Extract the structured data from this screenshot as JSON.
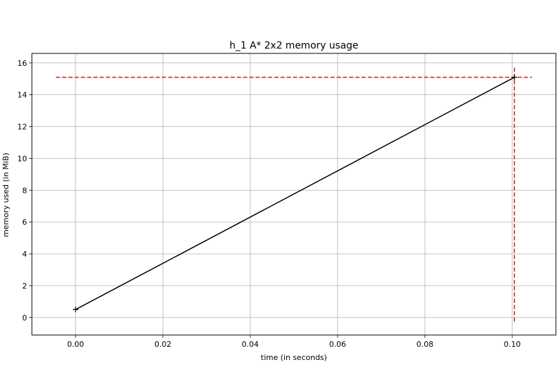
{
  "chart_data": {
    "type": "line",
    "title": "h_1 A* 2x2 memory usage",
    "xlabel": "time (in seconds)",
    "ylabel": "memory used (in MiB)",
    "xlim": [
      -0.01,
      0.11
    ],
    "ylim": [
      -1.1,
      16.6
    ],
    "xticks": [
      0.0,
      0.02,
      0.04,
      0.06,
      0.08,
      0.1
    ],
    "xtick_labels": [
      "0.00",
      "0.02",
      "0.04",
      "0.06",
      "0.08",
      "0.10"
    ],
    "yticks": [
      0,
      2,
      4,
      6,
      8,
      10,
      12,
      14,
      16
    ],
    "ytick_labels": [
      "0",
      "2",
      "4",
      "6",
      "8",
      "10",
      "12",
      "14",
      "16"
    ],
    "grid": true,
    "series": [
      {
        "x": [
          0.0,
          0.1005
        ],
        "y": [
          0.5,
          15.1
        ],
        "color": "#000000",
        "marker": "+"
      }
    ],
    "annotations": [
      {
        "type": "hline-dashed",
        "y": 15.1,
        "x_from": -0.0045,
        "x_to": 0.1045,
        "color": "#d62728"
      },
      {
        "type": "vline-dashed",
        "x": 0.1005,
        "y_from": -0.25,
        "y_to": 15.8,
        "color": "#d62728"
      }
    ]
  }
}
